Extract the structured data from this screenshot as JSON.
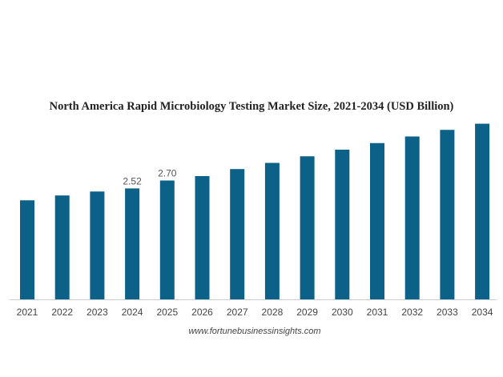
{
  "chart_data": {
    "type": "bar",
    "title": "North America Rapid Microbiology Testing Market Size, 2021-2034 (USD Billion)",
    "xlabel": "",
    "ylabel": "",
    "categories": [
      "2021",
      "2022",
      "2023",
      "2024",
      "2025",
      "2026",
      "2027",
      "2028",
      "2029",
      "2030",
      "2031",
      "2032",
      "2033",
      "2034"
    ],
    "values": [
      2.25,
      2.36,
      2.45,
      2.52,
      2.7,
      2.8,
      2.96,
      3.1,
      3.25,
      3.4,
      3.55,
      3.7,
      3.85,
      3.99
    ],
    "data_labels": {
      "3": "2.52",
      "4": "2.70"
    },
    "ylim": [
      0,
      4.1
    ],
    "grid": false,
    "bar_color": "#0b6187",
    "source": "www.fortunebusinessinsights.com"
  }
}
